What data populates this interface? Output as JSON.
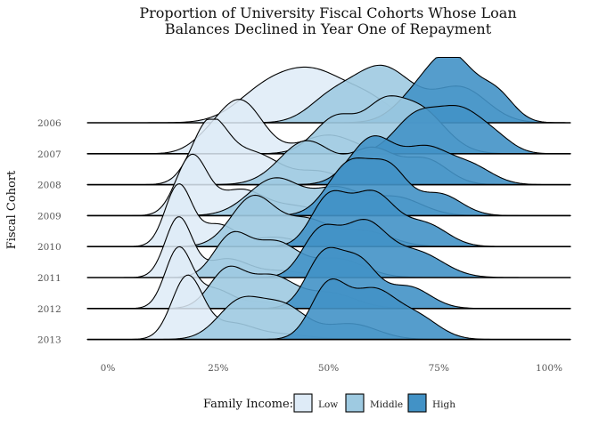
{
  "chart_data": {
    "type": "ridgeline",
    "title_lines": [
      "Proportion of University Fiscal Cohorts Whose Loan",
      "Balances Declined in Year One of Repayment"
    ],
    "ylabel": "Fiscal Cohort",
    "xlabel": "",
    "xlim": [
      0,
      100
    ],
    "x_ticks": [
      "0%",
      "25%",
      "50%",
      "75%",
      "100%"
    ],
    "x_tick_values": [
      0,
      25,
      50,
      75,
      100
    ],
    "categories": [
      "2006",
      "2007",
      "2008",
      "2009",
      "2010",
      "2011",
      "2012",
      "2013"
    ],
    "legend_title": "Family Income:",
    "legend_placement": "bottom",
    "series": [
      {
        "name": "Low",
        "color": "#deebf7",
        "peaks": [
          [
            [
              46,
              0.85,
              9
            ],
            [
              34,
              0.25,
              6
            ],
            [
              60,
              0.2,
              5
            ]
          ],
          [
            [
              30,
              0.85,
              5
            ],
            [
              50,
              0.3,
              6
            ],
            [
              22,
              0.15,
              4
            ]
          ],
          [
            [
              23,
              0.95,
              4
            ],
            [
              33,
              0.5,
              6
            ],
            [
              48,
              0.2,
              5
            ]
          ],
          [
            [
              19,
              0.95,
              3.5
            ],
            [
              30,
              0.4,
              5
            ],
            [
              42,
              0.15,
              6
            ]
          ],
          [
            [
              16,
              0.98,
              3
            ],
            [
              25,
              0.35,
              4
            ],
            [
              38,
              0.15,
              5
            ]
          ],
          [
            [
              16,
              0.95,
              3
            ],
            [
              27,
              0.3,
              5
            ],
            [
              40,
              0.1,
              5
            ]
          ],
          [
            [
              16,
              0.95,
              3
            ],
            [
              24,
              0.3,
              4
            ],
            [
              35,
              0.1,
              5
            ]
          ],
          [
            [
              18,
              1.0,
              3.5
            ],
            [
              28,
              0.25,
              5
            ],
            [
              40,
              0.08,
              6
            ]
          ]
        ]
      },
      {
        "name": "Middle",
        "color": "#9ecae1",
        "peaks": [
          [
            [
              62,
              0.9,
              7
            ],
            [
              80,
              0.55,
              6
            ],
            [
              50,
              0.3,
              5
            ]
          ],
          [
            [
              52,
              0.6,
              5
            ],
            [
              70,
              0.75,
              6
            ],
            [
              62,
              0.5,
              4
            ]
          ],
          [
            [
              45,
              0.7,
              6
            ],
            [
              60,
              0.55,
              5
            ],
            [
              72,
              0.4,
              5
            ]
          ],
          [
            [
              38,
              0.6,
              6
            ],
            [
              52,
              0.4,
              5
            ],
            [
              65,
              0.3,
              6
            ]
          ],
          [
            [
              33,
              0.8,
              5
            ],
            [
              45,
              0.4,
              5
            ],
            [
              58,
              0.25,
              6
            ]
          ],
          [
            [
              28,
              0.65,
              4
            ],
            [
              38,
              0.55,
              5
            ],
            [
              52,
              0.3,
              6
            ]
          ],
          [
            [
              27,
              0.6,
              4
            ],
            [
              37,
              0.5,
              5
            ],
            [
              50,
              0.25,
              6
            ]
          ],
          [
            [
              30,
              0.6,
              5
            ],
            [
              40,
              0.5,
              5
            ],
            [
              55,
              0.25,
              6
            ]
          ]
        ]
      },
      {
        "name": "High",
        "color": "#4292c6",
        "peaks": [
          [
            [
              78,
              1.0,
              5
            ],
            [
              88,
              0.45,
              4
            ],
            [
              70,
              0.4,
              5
            ]
          ],
          [
            [
              70,
              0.6,
              5
            ],
            [
              80,
              0.65,
              5
            ],
            [
              88,
              0.2,
              4
            ]
          ],
          [
            [
              60,
              0.75,
              5
            ],
            [
              72,
              0.55,
              5
            ],
            [
              82,
              0.3,
              5
            ]
          ],
          [
            [
              55,
              0.85,
              5
            ],
            [
              64,
              0.65,
              4
            ],
            [
              75,
              0.35,
              5
            ]
          ],
          [
            [
              50,
              0.75,
              4
            ],
            [
              60,
              0.85,
              5
            ],
            [
              72,
              0.35,
              5
            ]
          ],
          [
            [
              48,
              0.7,
              4
            ],
            [
              58,
              0.85,
              5
            ],
            [
              70,
              0.4,
              6
            ]
          ],
          [
            [
              49,
              0.85,
              4
            ],
            [
              57,
              0.7,
              4
            ],
            [
              68,
              0.35,
              5
            ]
          ],
          [
            [
              50,
              0.85,
              4
            ],
            [
              60,
              0.75,
              5
            ],
            [
              70,
              0.35,
              5
            ]
          ]
        ]
      }
    ]
  }
}
